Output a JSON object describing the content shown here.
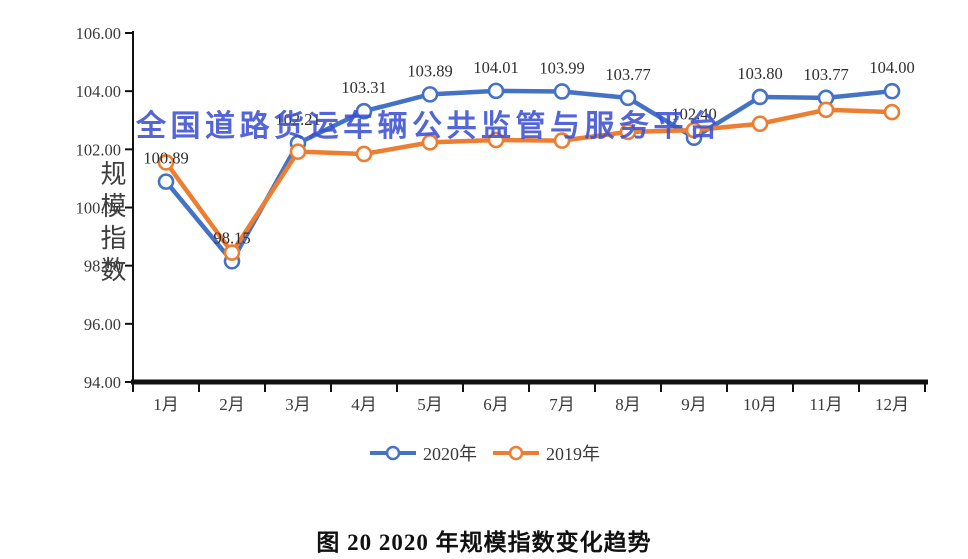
{
  "watermark": {
    "text": "全国道路货运车辆公共监管与服务平台",
    "color": "#3C50D2"
  },
  "caption": "图 20 2020 年规模指数变化趋势",
  "chart_data": {
    "type": "line",
    "title": "",
    "xlabel": "",
    "ylabel": "规模指数",
    "categories": [
      "1月",
      "2月",
      "3月",
      "4月",
      "5月",
      "6月",
      "7月",
      "8月",
      "9月",
      "10月",
      "11月",
      "12月"
    ],
    "series": [
      {
        "name": "2020年",
        "color": "#4472C4",
        "values": [
          100.89,
          98.15,
          102.21,
          103.31,
          103.89,
          104.01,
          103.99,
          103.77,
          102.4,
          103.8,
          103.77,
          104.0
        ],
        "point_labels": [
          "100.89",
          "98.15",
          "102.21",
          "103.31",
          "103.89",
          "104.01",
          "103.99",
          "103.77",
          "102.40",
          "103.80",
          "103.77",
          "104.00"
        ]
      },
      {
        "name": "2019年",
        "color": "#ED7D31",
        "values": [
          101.55,
          98.45,
          101.92,
          101.84,
          102.24,
          102.32,
          102.3,
          102.6,
          102.66,
          102.88,
          103.36,
          103.28
        ],
        "point_labels": []
      }
    ],
    "ylim": [
      94,
      106
    ],
    "ytick_step": 2,
    "yticks": [
      "106.00",
      "104.00",
      "102.00",
      "100.00",
      "98.00",
      "96.00",
      "94.00"
    ],
    "grid": false,
    "legend_position": "bottom",
    "axis_color": "#111111",
    "tick_label_color": "#3a3a3a",
    "data_label_color": "#2e2e2e"
  }
}
